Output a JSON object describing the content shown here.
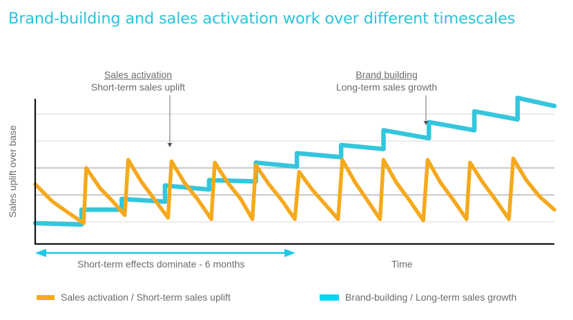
{
  "title": "Brand-building and sales activation work over different timescales",
  "colors": {
    "title": "#2cc2da",
    "sales_activation": "#f5a91d",
    "brand_building": "#33c6dc",
    "legend_brand_swatch": "#00d5f5",
    "span_arrow": "#1ec8e8",
    "grid_light": "#e6e6e6",
    "grid_dark": "#b5b5b5",
    "axis": "#111111",
    "text": "#6b6b6b"
  },
  "annotations": [
    {
      "id": "sales",
      "heading": "Sales activation",
      "subtext": "Short-term sales uplift",
      "points_to_month": 3.1,
      "points_to_y": 3.7
    },
    {
      "id": "brand",
      "heading": "Brand building",
      "subtext": "Long-term sales growth",
      "points_to_month": 9.0,
      "points_to_y": 4.55
    }
  ],
  "span": {
    "label": "Short-term effects dominate - 6 months",
    "from_month": 0,
    "to_month": 6
  },
  "legend": [
    {
      "label": "Sales activation / Short-term sales uplift",
      "series": "sales_activation"
    },
    {
      "label": "Brand-building / Long-term sales growth",
      "series": "brand_building"
    }
  ],
  "chart_data": {
    "type": "line",
    "title": "Brand-building and sales activation work over different timescales",
    "xlabel": "Time",
    "ylabel": "Sales uplift over base",
    "xlim": [
      0,
      12
    ],
    "ylim": [
      0.18,
      5.56
    ],
    "x_unit": "months (12 total; first 6 months marked)",
    "gridlines_y": [
      1,
      2,
      3,
      4,
      5
    ],
    "grid": true,
    "tick_labels_shown": false,
    "legend_position": "bottom",
    "series": [
      {
        "name": "Sales activation / Short-term sales uplift",
        "key": "sales_activation",
        "shape": "sawtooth: sharp spikes followed by exponential decay",
        "points": [
          [
            0.0,
            2.4
          ],
          [
            0.4,
            1.75
          ],
          [
            0.8,
            1.3
          ],
          [
            1.12,
            0.95
          ],
          [
            1.18,
            3.0
          ],
          [
            1.5,
            2.25
          ],
          [
            1.8,
            1.75
          ],
          [
            2.07,
            1.25
          ],
          [
            2.15,
            3.3
          ],
          [
            2.45,
            2.5
          ],
          [
            2.75,
            1.85
          ],
          [
            3.07,
            1.15
          ],
          [
            3.15,
            3.25
          ],
          [
            3.45,
            2.45
          ],
          [
            3.75,
            1.85
          ],
          [
            4.07,
            1.1
          ],
          [
            4.15,
            3.2
          ],
          [
            4.45,
            2.45
          ],
          [
            4.75,
            1.85
          ],
          [
            5.02,
            1.1
          ],
          [
            5.1,
            3.1
          ],
          [
            5.4,
            2.4
          ],
          [
            5.7,
            1.8
          ],
          [
            6.0,
            1.1
          ],
          [
            6.1,
            2.85
          ],
          [
            6.4,
            2.2
          ],
          [
            6.7,
            1.65
          ],
          [
            7.0,
            1.1
          ],
          [
            7.1,
            3.3
          ],
          [
            7.4,
            2.45
          ],
          [
            7.7,
            1.75
          ],
          [
            7.97,
            1.1
          ],
          [
            8.05,
            3.3
          ],
          [
            8.35,
            2.45
          ],
          [
            8.65,
            1.8
          ],
          [
            8.97,
            1.05
          ],
          [
            9.07,
            3.3
          ],
          [
            9.37,
            2.45
          ],
          [
            9.67,
            1.8
          ],
          [
            9.97,
            1.1
          ],
          [
            10.05,
            3.2
          ],
          [
            10.35,
            2.45
          ],
          [
            10.65,
            1.8
          ],
          [
            10.95,
            1.1
          ],
          [
            11.05,
            3.35
          ],
          [
            11.35,
            2.55
          ],
          [
            11.65,
            1.95
          ],
          [
            12.0,
            1.45
          ]
        ]
      },
      {
        "name": "Brand-building / Long-term sales growth",
        "key": "brand_building",
        "shape": "staircase: step up at each activation, slight drift down between",
        "points": [
          [
            0.0,
            0.95
          ],
          [
            1.07,
            0.9
          ],
          [
            1.07,
            1.45
          ],
          [
            2.0,
            1.45
          ],
          [
            2.0,
            1.85
          ],
          [
            3.0,
            1.75
          ],
          [
            3.0,
            2.35
          ],
          [
            4.02,
            2.2
          ],
          [
            4.02,
            2.55
          ],
          [
            5.1,
            2.5
          ],
          [
            5.1,
            3.2
          ],
          [
            6.05,
            3.05
          ],
          [
            6.05,
            3.55
          ],
          [
            7.07,
            3.4
          ],
          [
            7.07,
            3.85
          ],
          [
            8.05,
            3.7
          ],
          [
            8.05,
            4.4
          ],
          [
            9.1,
            4.1
          ],
          [
            9.1,
            4.7
          ],
          [
            10.15,
            4.4
          ],
          [
            10.15,
            5.1
          ],
          [
            11.15,
            4.8
          ],
          [
            11.15,
            5.6
          ],
          [
            12.0,
            5.3
          ]
        ]
      }
    ]
  }
}
